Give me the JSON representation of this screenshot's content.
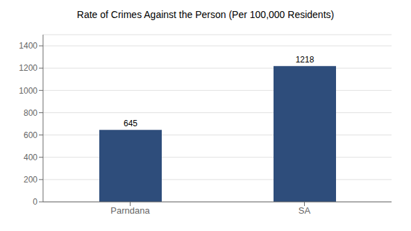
{
  "chart_data": {
    "type": "bar",
    "title": "Rate of Crimes Against the Person (Per 100,000 Residents)",
    "categories": [
      "Parndana",
      "SA"
    ],
    "values": [
      645,
      1218
    ],
    "color": "#2e4d7b",
    "ylim": [
      0,
      1500
    ],
    "yticks": [
      0,
      200,
      400,
      600,
      800,
      1000,
      1200,
      1400
    ],
    "grid": true,
    "data_labels": true
  }
}
